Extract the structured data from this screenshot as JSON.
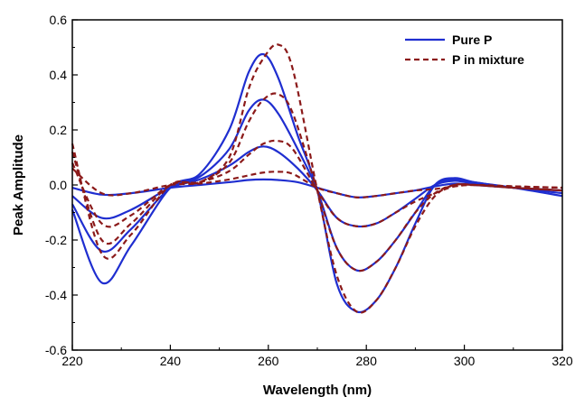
{
  "chart_data": {
    "type": "line",
    "xlabel": "Wavelength (nm)",
    "ylabel": "Peak Amplitude",
    "xlim": [
      220,
      320
    ],
    "ylim": [
      -0.6,
      0.6
    ],
    "xticks": [
      220,
      240,
      260,
      280,
      300,
      320
    ],
    "yticks": [
      -0.6,
      -0.4,
      -0.2,
      0.0,
      0.2,
      0.4,
      0.6
    ],
    "grid": false,
    "legend_position": "top-right",
    "legend": [
      {
        "label": "Pure P",
        "color": "#1f2ed0",
        "style": "solid"
      },
      {
        "label": "P in mixture",
        "color": "#8b1a1a",
        "style": "dashed"
      }
    ],
    "series": [
      {
        "group": "Pure P",
        "color": "#1f2ed0",
        "style": "solid",
        "x": [
          220,
          226,
          232,
          240,
          246,
          252,
          256,
          259,
          262,
          266,
          270,
          274,
          278,
          282,
          286,
          290,
          294,
          298,
          302,
          310,
          320
        ],
        "y": [
          -0.01,
          -0.035,
          -0.03,
          -0.01,
          0.0,
          0.01,
          0.018,
          0.02,
          0.018,
          0.01,
          -0.01,
          -0.03,
          -0.045,
          -0.04,
          -0.03,
          -0.02,
          -0.005,
          0.005,
          0.0,
          -0.01,
          -0.02
        ]
      },
      {
        "group": "Pure P",
        "color": "#1f2ed0",
        "style": "solid",
        "x": [
          220,
          226,
          232,
          240,
          246,
          252,
          256,
          259,
          262,
          266,
          270,
          274,
          278,
          282,
          286,
          290,
          294,
          298,
          302,
          310,
          320
        ],
        "y": [
          -0.04,
          -0.12,
          -0.09,
          -0.01,
          0.02,
          0.07,
          0.12,
          0.14,
          0.12,
          0.06,
          -0.02,
          -0.12,
          -0.15,
          -0.14,
          -0.1,
          -0.05,
          0.0,
          0.015,
          0.005,
          -0.01,
          -0.02
        ]
      },
      {
        "group": "Pure P",
        "color": "#1f2ed0",
        "style": "solid",
        "x": [
          220,
          226,
          232,
          240,
          246,
          252,
          256,
          259,
          262,
          266,
          270,
          274,
          278,
          282,
          286,
          290,
          294,
          298,
          302,
          310,
          320
        ],
        "y": [
          -0.07,
          -0.24,
          -0.16,
          -0.01,
          0.03,
          0.13,
          0.27,
          0.31,
          0.26,
          0.13,
          -0.02,
          -0.23,
          -0.31,
          -0.28,
          -0.2,
          -0.1,
          0.0,
          0.02,
          0.01,
          -0.01,
          -0.03
        ]
      },
      {
        "group": "Pure P",
        "color": "#1f2ed0",
        "style": "solid",
        "x": [
          220,
          226,
          232,
          240,
          246,
          252,
          256,
          259,
          262,
          266,
          270,
          274,
          278,
          282,
          286,
          290,
          294,
          298,
          302,
          310,
          320
        ],
        "y": [
          -0.09,
          -0.355,
          -0.22,
          -0.01,
          0.04,
          0.2,
          0.41,
          0.475,
          0.39,
          0.18,
          -0.02,
          -0.36,
          -0.46,
          -0.42,
          -0.3,
          -0.14,
          0.0,
          0.025,
          0.01,
          -0.01,
          -0.04
        ]
      },
      {
        "group": "P in mixture",
        "color": "#8b1a1a",
        "style": "dashed",
        "x": [
          220,
          226,
          232,
          240,
          246,
          252,
          256,
          259,
          262,
          265,
          270,
          274,
          278,
          282,
          286,
          290,
          294,
          298,
          302,
          310,
          320
        ],
        "y": [
          0.06,
          -0.03,
          -0.03,
          0.0,
          0.005,
          0.02,
          0.035,
          0.045,
          0.048,
          0.04,
          -0.01,
          -0.03,
          -0.045,
          -0.04,
          -0.03,
          -0.02,
          -0.015,
          -0.005,
          0.0,
          -0.005,
          -0.01
        ]
      },
      {
        "group": "P in mixture",
        "color": "#8b1a1a",
        "style": "dashed",
        "x": [
          220,
          226,
          232,
          240,
          246,
          252,
          256,
          259,
          262,
          265,
          270,
          274,
          278,
          282,
          286,
          290,
          294,
          298,
          302,
          310,
          320
        ],
        "y": [
          0.08,
          -0.14,
          -0.11,
          0.0,
          0.01,
          0.05,
          0.11,
          0.15,
          0.16,
          0.13,
          -0.02,
          -0.12,
          -0.15,
          -0.14,
          -0.1,
          -0.06,
          -0.03,
          -0.005,
          0.0,
          -0.005,
          -0.01
        ]
      },
      {
        "group": "P in mixture",
        "color": "#8b1a1a",
        "style": "dashed",
        "x": [
          220,
          226,
          232,
          240,
          246,
          252,
          256,
          259,
          262,
          265,
          270,
          274,
          278,
          282,
          286,
          290,
          294,
          298,
          302,
          310,
          320
        ],
        "y": [
          0.12,
          -0.2,
          -0.14,
          0.0,
          0.01,
          0.08,
          0.23,
          0.31,
          0.33,
          0.26,
          -0.02,
          -0.23,
          -0.31,
          -0.28,
          -0.2,
          -0.1,
          -0.03,
          0.0,
          0.0,
          -0.01,
          -0.02
        ]
      },
      {
        "group": "P in mixture",
        "color": "#8b1a1a",
        "style": "dashed",
        "x": [
          220,
          226,
          232,
          240,
          246,
          252,
          256,
          259,
          262,
          265,
          270,
          274,
          278,
          282,
          286,
          290,
          294,
          298,
          302,
          310,
          320
        ],
        "y": [
          0.15,
          -0.25,
          -0.18,
          0.0,
          0.01,
          0.1,
          0.35,
          0.46,
          0.51,
          0.42,
          -0.02,
          -0.33,
          -0.46,
          -0.42,
          -0.3,
          -0.15,
          -0.04,
          0.0,
          0.0,
          -0.01,
          -0.02
        ]
      }
    ]
  }
}
